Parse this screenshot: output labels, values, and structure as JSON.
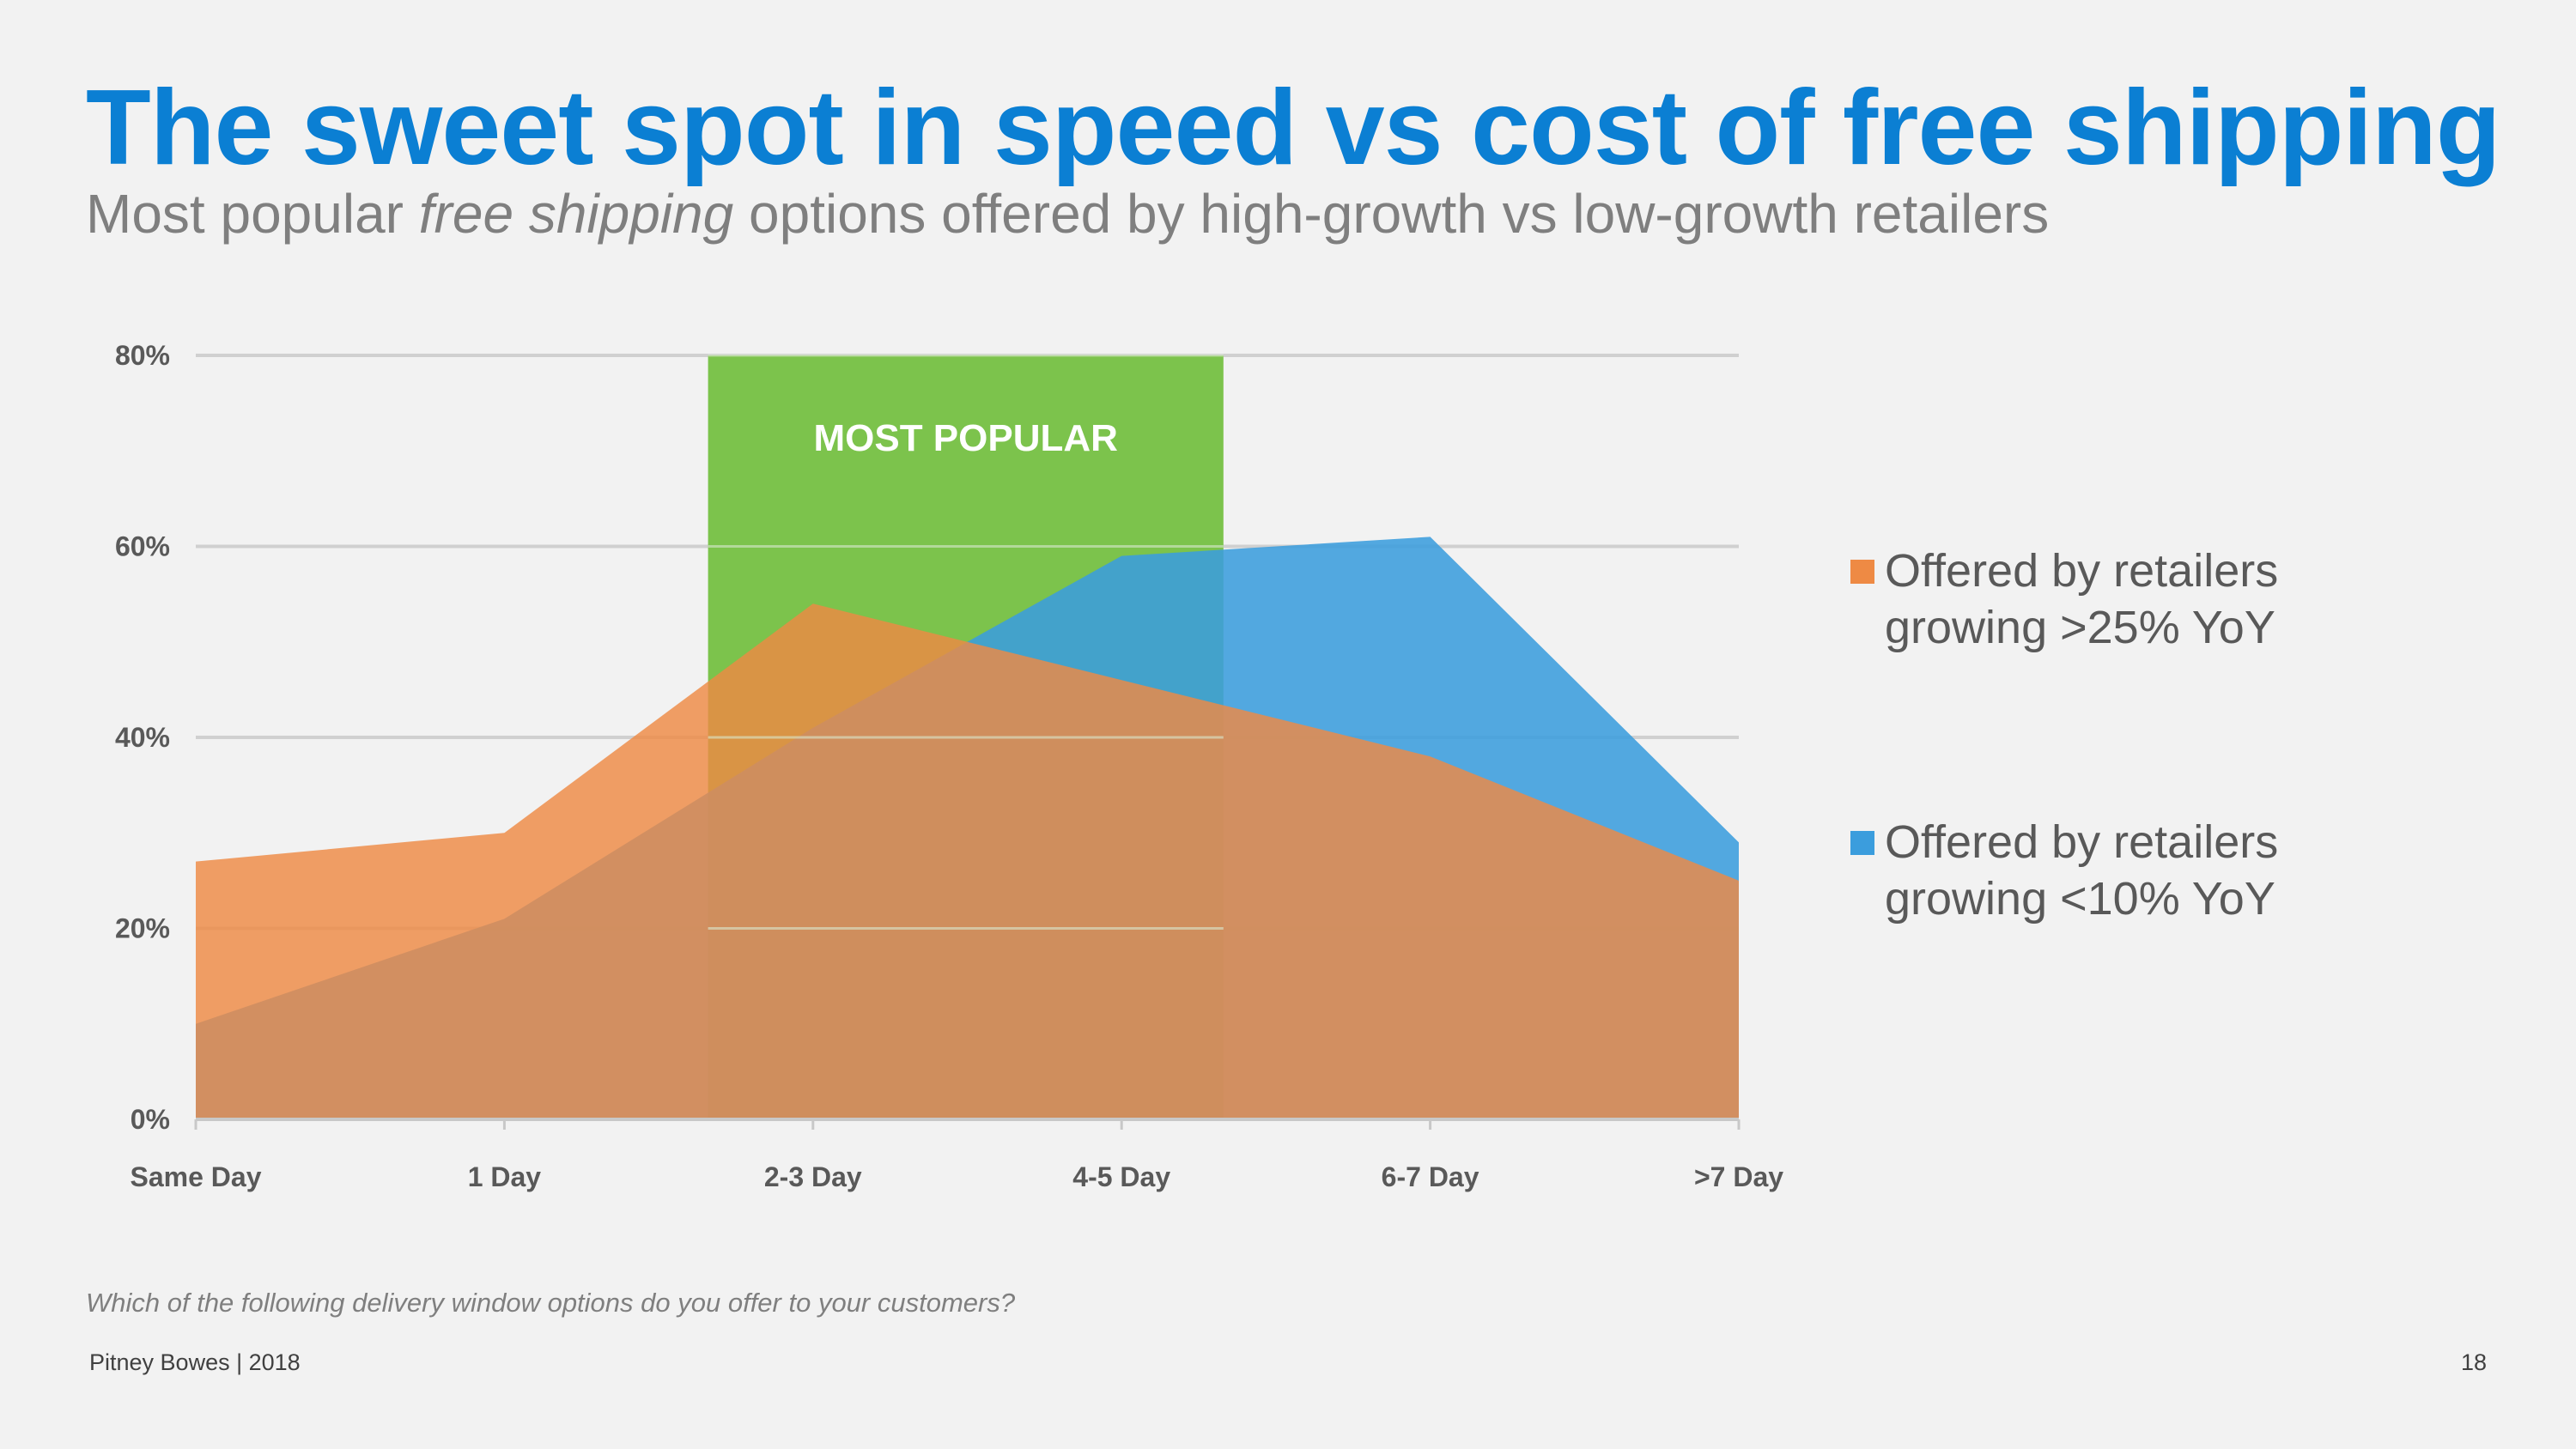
{
  "slide": {
    "title": "The sweet spot in speed vs cost of free shipping",
    "subtitle_parts": {
      "before": "Most popular ",
      "emphasis": "free shipping",
      "after": " options offered by high-growth vs low-growth retailers"
    },
    "question": "Which of the following delivery window options do you offer to your customers?",
    "footer": "Pitney Bowes | 2018",
    "page_number": "18"
  },
  "chart_data": {
    "type": "area",
    "title": "",
    "xlabel": "",
    "ylabel": "",
    "categories": [
      "Same Day",
      "1 Day",
      "2-3 Day",
      "4-5 Day",
      "6-7 Day",
      ">7 Day"
    ],
    "ylim": [
      0,
      80
    ],
    "yticks": [
      0,
      20,
      40,
      60,
      80
    ],
    "ytick_labels": [
      "0%",
      "20%",
      "40%",
      "60%",
      "80%"
    ],
    "grid": true,
    "legend_position": "right",
    "series": [
      {
        "name_line1": "Offered by retailers",
        "name_line2": "growing <10% YoY",
        "values": [
          10,
          21,
          41,
          59,
          61,
          29
        ],
        "color": "#3b9ddd"
      },
      {
        "name_line1": "Offered by retailers",
        "name_line2": "growing >25% YoY",
        "values": [
          27,
          30,
          54,
          46,
          38,
          25
        ],
        "color": "#ee8a44"
      }
    ],
    "highlight": {
      "label": "MOST POPULAR",
      "from_category_index": 1.66,
      "to_category_index": 3.33,
      "color": "#7cc34c"
    }
  }
}
